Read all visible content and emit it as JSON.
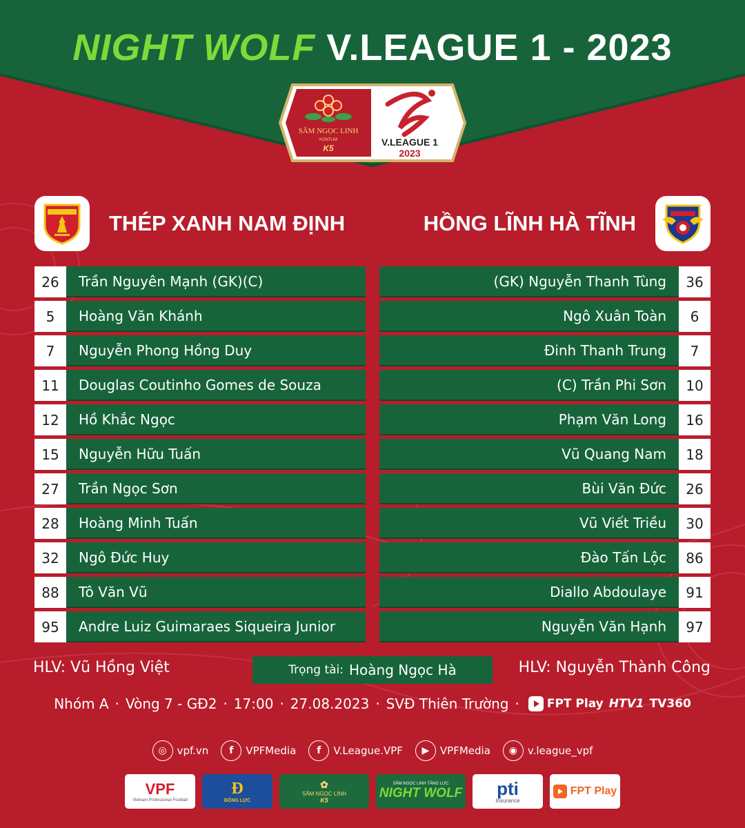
{
  "header": {
    "title_part1": "NIGHT WOLF",
    "title_part2": "V.LEAGUE 1 - 2023"
  },
  "badge": {
    "sponsor_name": "SÂM NGỌC LINH",
    "sponsor_sub": "KONTUM",
    "sponsor_mark": "K5",
    "league_name": "V.LEAGUE 1",
    "league_year": "2023"
  },
  "home": {
    "name": "THÉP XANH NAM ĐỊNH",
    "coach": "HLV: Vũ Hồng Việt",
    "players": [
      {
        "number": "26",
        "name": "Trần Nguyên Mạnh (GK)(C)"
      },
      {
        "number": "5",
        "name": "Hoàng Văn Khánh"
      },
      {
        "number": "7",
        "name": "Nguyễn Phong Hồng Duy"
      },
      {
        "number": "11",
        "name": "Douglas Coutinho Gomes de Souza"
      },
      {
        "number": "12",
        "name": "Hồ Khắc Ngọc"
      },
      {
        "number": "15",
        "name": "Nguyễn Hữu Tuấn"
      },
      {
        "number": "27",
        "name": "Trần Ngọc Sơn"
      },
      {
        "number": "28",
        "name": "Hoàng Minh Tuấn"
      },
      {
        "number": "32",
        "name": "Ngô Đức Huy"
      },
      {
        "number": "88",
        "name": "Tô Văn Vũ"
      },
      {
        "number": "95",
        "name": "Andre Luiz Guimaraes Siqueira Junior"
      }
    ]
  },
  "away": {
    "name": "HỒNG LĨNH HÀ TĨNH",
    "coach": "HLV: Nguyễn Thành Công",
    "players": [
      {
        "number": "36",
        "name": "(GK) Nguyễn Thanh Tùng"
      },
      {
        "number": "6",
        "name": "Ngô Xuân Toàn"
      },
      {
        "number": "7",
        "name": "Đinh Thanh Trung"
      },
      {
        "number": "10",
        "name": "(C) Trần Phi Sơn"
      },
      {
        "number": "16",
        "name": "Phạm Văn Long"
      },
      {
        "number": "18",
        "name": "Vũ Quang Nam"
      },
      {
        "number": "26",
        "name": "Bùi Văn Đức"
      },
      {
        "number": "30",
        "name": "Vũ Viết Triều"
      },
      {
        "number": "86",
        "name": "Đào Tấn Lộc"
      },
      {
        "number": "91",
        "name": "Diallo Abdoulaye"
      },
      {
        "number": "97",
        "name": "Nguyễn Văn Hạnh"
      }
    ]
  },
  "referee": {
    "label": "Trọng tài:",
    "name": "Hoàng Ngọc Hà"
  },
  "match": {
    "group": "Nhóm A",
    "round": "Vòng 7 - GĐ2",
    "time": "17:00",
    "date": "27.08.2023",
    "stadium": "SVĐ Thiên Trường",
    "broadcast_fpt": "FPT Play",
    "broadcast_htv": "HTV1",
    "broadcast_tv360": "TV360"
  },
  "socials": [
    {
      "icon": "globe-icon",
      "glyph": "◎",
      "label": "vpf.vn"
    },
    {
      "icon": "facebook-icon",
      "glyph": "f",
      "label": "VPFMedia"
    },
    {
      "icon": "facebook-icon",
      "glyph": "f",
      "label": "V.League.VPF"
    },
    {
      "icon": "youtube-icon",
      "glyph": "▶",
      "label": "VPFMedia"
    },
    {
      "icon": "instagram-icon",
      "glyph": "◉",
      "label": "v.league_vpf"
    }
  ],
  "sponsors": {
    "vpf": "VPF",
    "vpf_sub": "Vietnam Professional Football",
    "dongluc": "ĐỘNG LỰC",
    "samngoclinh": "SÂM NGỌC LINH",
    "samngoclinh_sub": "K5",
    "nightwolf_top": "SÂM NGỌC LINH TĂNG LỰC",
    "nightwolf": "NIGHT WOLF",
    "pti": "pti",
    "pti_sub": "Insurance",
    "fptplay": "FPT Play"
  },
  "colors": {
    "background_red": "#b81d2c",
    "header_green": "#17643a",
    "accent_green": "#7cdb3a"
  }
}
